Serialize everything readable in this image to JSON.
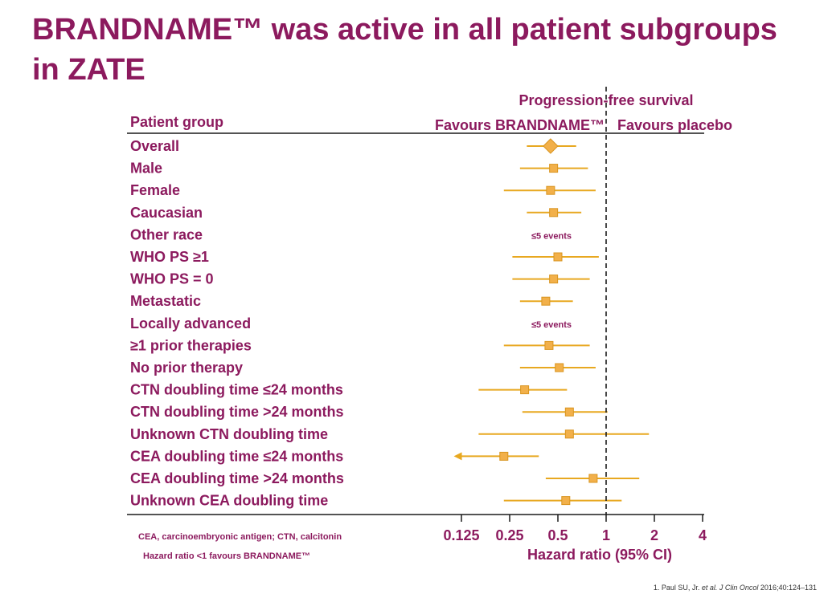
{
  "title": "BRANDNAME™ was active in all patient subgroups in ZATE",
  "colors": {
    "title": "#8c1a5e",
    "marker": "#f2b04a",
    "ci_line": "#e8a820",
    "text": "#8c1a5e"
  },
  "chart_data": {
    "type": "forest",
    "title": "Progression-free survival",
    "column_header": "Patient group",
    "favours_left": "Favours BRANDNAME™",
    "favours_right": "Favours placebo",
    "xlabel": "Hazard ratio (95% CI)",
    "x_scale": "log2",
    "x_ticks": [
      0.125,
      0.25,
      0.5,
      1,
      2,
      4
    ],
    "x_tick_labels": [
      "0.125",
      "0.25",
      "0.5",
      "1",
      "2",
      "4"
    ],
    "reference_line": 1,
    "rows": [
      {
        "group": "Overall",
        "hr": 0.45,
        "low": 0.32,
        "high": 0.65,
        "marker": "diamond"
      },
      {
        "group": "Male",
        "hr": 0.47,
        "low": 0.29,
        "high": 0.77
      },
      {
        "group": "Female",
        "hr": 0.45,
        "low": 0.23,
        "high": 0.86
      },
      {
        "group": "Caucasian",
        "hr": 0.47,
        "low": 0.32,
        "high": 0.7
      },
      {
        "group": "Other race",
        "note": "≤5 events"
      },
      {
        "group": "WHO PS ≥1",
        "hr": 0.5,
        "low": 0.26,
        "high": 0.9
      },
      {
        "group": "WHO PS = 0",
        "hr": 0.47,
        "low": 0.26,
        "high": 0.79
      },
      {
        "group": "Metastatic",
        "hr": 0.42,
        "low": 0.29,
        "high": 0.62
      },
      {
        "group": "Locally advanced",
        "note": "≤5 events"
      },
      {
        "group": "≥1 prior therapies",
        "hr": 0.44,
        "low": 0.23,
        "high": 0.79
      },
      {
        "group": "No prior therapy",
        "hr": 0.51,
        "low": 0.29,
        "high": 0.86
      },
      {
        "group": "CTN doubling time ≤24 months",
        "hr": 0.31,
        "low": 0.16,
        "high": 0.57
      },
      {
        "group": "CTN doubling time >24 months",
        "hr": 0.59,
        "low": 0.3,
        "high": 1.02
      },
      {
        "group": "Unknown CTN doubling time",
        "hr": 0.59,
        "low": 0.16,
        "high": 1.85
      },
      {
        "group": "CEA doubling time ≤24 months",
        "hr": 0.23,
        "low": 0.116,
        "high": 0.38,
        "arrow_left": true
      },
      {
        "group": "CEA doubling time >24 months",
        "hr": 0.83,
        "low": 0.42,
        "high": 1.61
      },
      {
        "group": "Unknown CEA doubling time",
        "hr": 0.56,
        "low": 0.23,
        "high": 1.25
      }
    ],
    "footnotes": [
      "CEA, carcinoembryonic antigen; CTN, calcitonin",
      "Hazard ratio <1 favours BRANDNAME™"
    ]
  },
  "citation": {
    "prefix": "1. Paul SU, Jr. ",
    "etal": "et al.",
    "journal": " J Clin Oncol",
    "suffix": " 2016;40:124–131"
  }
}
